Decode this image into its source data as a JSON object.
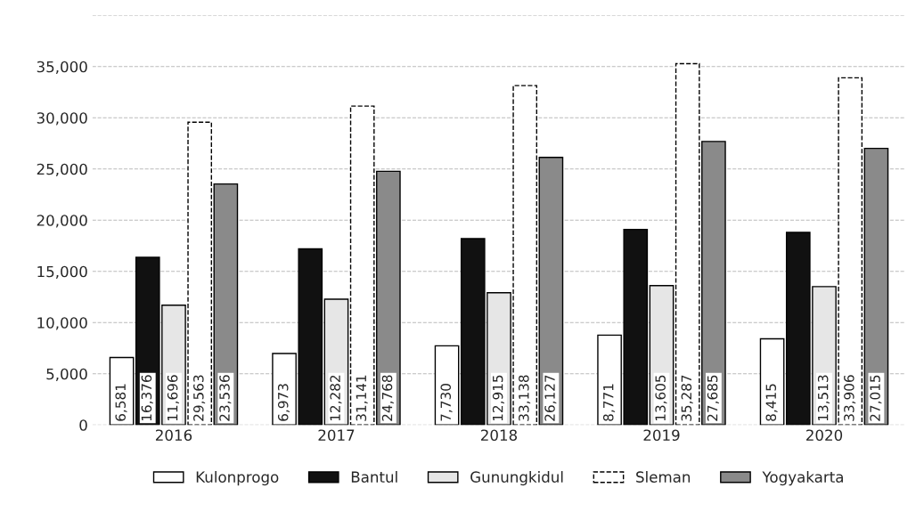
{
  "chart_data": {
    "type": "bar",
    "categories": [
      "2016",
      "2017",
      "2018",
      "2019",
      "2020"
    ],
    "series": [
      {
        "name": "Kulonprogo",
        "color": "#ffffff",
        "values": [
          6581,
          6973,
          7730,
          8771,
          8415
        ],
        "value_labels": [
          "6,581",
          "6,973",
          "7,730",
          "8,771",
          "8,415"
        ]
      },
      {
        "name": "Bantul",
        "color": "#111111",
        "values": [
          16376,
          17200,
          18200,
          19100,
          18800
        ],
        "value_labels": [
          "16,376",
          null,
          null,
          null,
          null
        ]
      },
      {
        "name": "Gunungkidul",
        "color": "#e6e6e6",
        "values": [
          11696,
          12282,
          12915,
          13605,
          13513
        ],
        "value_labels": [
          "11,696",
          "12,282",
          "12,915",
          "13,605",
          "13,513"
        ]
      },
      {
        "name": "Sleman",
        "color": "#ffffff",
        "line_style": "dashed",
        "values": [
          29563,
          31141,
          33138,
          35287,
          33906
        ],
        "value_labels": [
          "29,563",
          "31,141",
          "33,138",
          "35,287",
          "33,906"
        ]
      },
      {
        "name": "Yogyakarta",
        "color": "#8a8a8a",
        "values": [
          23536,
          24768,
          26127,
          27685,
          27015
        ],
        "value_labels": [
          "23,536",
          "24,768",
          "26,127",
          "27,685",
          "27,015"
        ]
      }
    ],
    "ylim": [
      0,
      40000
    ],
    "yticks": [
      {
        "value": 0,
        "label": "0"
      },
      {
        "value": 5000,
        "label": "5,000"
      },
      {
        "value": 10000,
        "label": "10,000"
      },
      {
        "value": 15000,
        "label": "15,000"
      },
      {
        "value": 20000,
        "label": "20,000"
      },
      {
        "value": 25000,
        "label": "25,000"
      },
      {
        "value": 30000,
        "label": "30,000"
      },
      {
        "value": 35000,
        "label": "35,000"
      },
      {
        "value": 40000,
        "label": null
      }
    ],
    "grid": "y",
    "legend": "bottom"
  }
}
